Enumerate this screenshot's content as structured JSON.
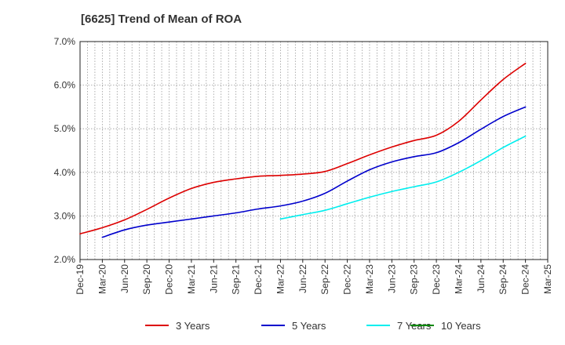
{
  "chart_data": {
    "type": "line",
    "title": "[6625]  Trend of Mean of ROA",
    "xlabel": "",
    "ylabel": "",
    "ylim": [
      2.0,
      7.0
    ],
    "y_ticks": [
      "2.0%",
      "3.0%",
      "4.0%",
      "5.0%",
      "6.0%",
      "7.0%"
    ],
    "y_tick_values": [
      2.0,
      3.0,
      4.0,
      5.0,
      6.0,
      7.0
    ],
    "categories": [
      "Dec-19",
      "Mar-20",
      "Jun-20",
      "Sep-20",
      "Dec-20",
      "Mar-21",
      "Jun-21",
      "Sep-21",
      "Dec-21",
      "Mar-22",
      "Jun-22",
      "Sep-22",
      "Dec-22",
      "Mar-23",
      "Jun-23",
      "Sep-23",
      "Dec-23",
      "Mar-24",
      "Jun-24",
      "Sep-24",
      "Dec-24",
      "Mar-25"
    ],
    "grid": true,
    "legend_position": "bottom",
    "series": [
      {
        "name": "3 Years",
        "color": "#dd0000",
        "values": [
          2.59,
          2.73,
          2.91,
          3.15,
          3.41,
          3.63,
          3.77,
          3.85,
          3.91,
          3.93,
          3.96,
          4.02,
          4.2,
          4.4,
          4.58,
          4.73,
          4.85,
          5.17,
          5.66,
          6.13,
          6.5,
          null
        ]
      },
      {
        "name": "5 Years",
        "color": "#0000cc",
        "values": [
          null,
          2.51,
          2.68,
          2.79,
          2.86,
          2.93,
          3.0,
          3.07,
          3.16,
          3.23,
          3.34,
          3.52,
          3.8,
          4.06,
          4.24,
          4.36,
          4.45,
          4.68,
          4.99,
          5.28,
          5.5,
          null
        ]
      },
      {
        "name": "7 Years",
        "color": "#00eeee",
        "values": [
          null,
          null,
          null,
          null,
          null,
          null,
          null,
          null,
          null,
          2.93,
          3.03,
          3.13,
          3.28,
          3.43,
          3.56,
          3.67,
          3.78,
          4.0,
          4.27,
          4.57,
          4.83,
          null
        ]
      },
      {
        "name": "10 Years",
        "color": "#008800",
        "values": [
          null,
          null,
          null,
          null,
          null,
          null,
          null,
          null,
          null,
          null,
          null,
          null,
          null,
          null,
          null,
          null,
          null,
          null,
          null,
          null,
          null,
          null
        ]
      }
    ]
  }
}
